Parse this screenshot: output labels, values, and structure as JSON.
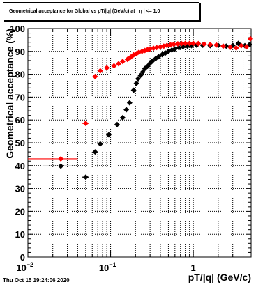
{
  "title": "Geometrical acceptance for Global vs pT/|q| (GeV/c) at | η | <= 1.0",
  "footer": "Thu Oct 15 19:24:06 2020",
  "colors": {
    "series_black": "#000000",
    "series_red": "#ff0000",
    "grid": "#000000"
  },
  "chart_data": {
    "type": "scatter",
    "title": "Geometrical acceptance for Global vs pT/|q| (GeV/c) at | η | <= 1.0",
    "xlabel": "pT/|q| (GeV/c)",
    "ylabel": "Geometrical acceptance (%)",
    "xscale": "log",
    "xlim": [
      0.01,
      5
    ],
    "ylim": [
      0,
      100
    ],
    "yticks": [
      0,
      10,
      20,
      30,
      40,
      50,
      60,
      70,
      80,
      90,
      100
    ],
    "xtick_labels": [
      {
        "value": 0.01,
        "base": "10",
        "exp": "−2"
      },
      {
        "value": 0.1,
        "base": "10",
        "exp": "−1"
      },
      {
        "value": 1,
        "base": "1",
        "exp": ""
      }
    ],
    "grid": true,
    "series": [
      {
        "color": "#000000",
        "points": [
          {
            "x": 0.025,
            "y": 39.8,
            "xerr": [
              0.015,
              0.04
            ]
          },
          {
            "x": 0.05,
            "y": 35.0,
            "xerr": [
              0.045,
              0.055
            ]
          },
          {
            "x": 0.065,
            "y": 46.0
          },
          {
            "x": 0.075,
            "y": 49.5
          },
          {
            "x": 0.095,
            "y": 53.5
          },
          {
            "x": 0.12,
            "y": 58.0
          },
          {
            "x": 0.14,
            "y": 61.0
          },
          {
            "x": 0.155,
            "y": 64.5
          },
          {
            "x": 0.17,
            "y": 67.5
          },
          {
            "x": 0.19,
            "y": 73.0
          },
          {
            "x": 0.205,
            "y": 76.0
          },
          {
            "x": 0.215,
            "y": 78.0
          },
          {
            "x": 0.23,
            "y": 79.5
          },
          {
            "x": 0.245,
            "y": 81.0
          },
          {
            "x": 0.26,
            "y": 82.5
          },
          {
            "x": 0.28,
            "y": 83.5
          },
          {
            "x": 0.3,
            "y": 84.8
          },
          {
            "x": 0.32,
            "y": 85.8
          },
          {
            "x": 0.35,
            "y": 86.8
          },
          {
            "x": 0.38,
            "y": 87.7
          },
          {
            "x": 0.42,
            "y": 88.6
          },
          {
            "x": 0.46,
            "y": 89.3
          },
          {
            "x": 0.5,
            "y": 90.0
          },
          {
            "x": 0.55,
            "y": 90.6
          },
          {
            "x": 0.6,
            "y": 91.1
          },
          {
            "x": 0.67,
            "y": 91.6
          },
          {
            "x": 0.75,
            "y": 92.0
          },
          {
            "x": 0.85,
            "y": 92.3
          },
          {
            "x": 0.95,
            "y": 92.5
          },
          {
            "x": 1.1,
            "y": 92.7
          },
          {
            "x": 1.3,
            "y": 92.7
          },
          {
            "x": 1.6,
            "y": 92.5
          },
          {
            "x": 2.0,
            "y": 92.6
          },
          {
            "x": 2.5,
            "y": 92.3
          },
          {
            "x": 3.0,
            "y": 92.6
          },
          {
            "x": 3.5,
            "y": 93.5
          },
          {
            "x": 4.2,
            "y": 92.5
          },
          {
            "x": 4.8,
            "y": 93.0
          }
        ]
      },
      {
        "color": "#ff0000",
        "points": [
          {
            "x": 0.025,
            "y": 43.0,
            "xerr": [
              0.01,
              0.04
            ]
          },
          {
            "x": 0.05,
            "y": 58.5,
            "xerr": [
              0.045,
              0.055
            ]
          },
          {
            "x": 0.065,
            "y": 79.0
          },
          {
            "x": 0.075,
            "y": 81.5
          },
          {
            "x": 0.09,
            "y": 82.8
          },
          {
            "x": 0.11,
            "y": 83.7
          },
          {
            "x": 0.125,
            "y": 84.6
          },
          {
            "x": 0.14,
            "y": 85.6
          },
          {
            "x": 0.16,
            "y": 86.5
          },
          {
            "x": 0.175,
            "y": 87.5
          },
          {
            "x": 0.19,
            "y": 88.5
          },
          {
            "x": 0.205,
            "y": 89.0
          },
          {
            "x": 0.22,
            "y": 89.6
          },
          {
            "x": 0.24,
            "y": 90.0
          },
          {
            "x": 0.26,
            "y": 90.4
          },
          {
            "x": 0.28,
            "y": 90.8
          },
          {
            "x": 0.3,
            "y": 91.1
          },
          {
            "x": 0.33,
            "y": 91.4
          },
          {
            "x": 0.36,
            "y": 91.7
          },
          {
            "x": 0.4,
            "y": 92.0
          },
          {
            "x": 0.44,
            "y": 92.3
          },
          {
            "x": 0.48,
            "y": 92.6
          },
          {
            "x": 0.53,
            "y": 92.9
          },
          {
            "x": 0.58,
            "y": 93.1
          },
          {
            "x": 0.65,
            "y": 93.3
          },
          {
            "x": 0.72,
            "y": 93.4
          },
          {
            "x": 0.8,
            "y": 93.5
          },
          {
            "x": 0.9,
            "y": 93.5
          },
          {
            "x": 1.0,
            "y": 93.5
          },
          {
            "x": 1.15,
            "y": 93.4
          },
          {
            "x": 1.35,
            "y": 93.2
          },
          {
            "x": 1.6,
            "y": 93.0
          },
          {
            "x": 1.9,
            "y": 92.8
          },
          {
            "x": 2.3,
            "y": 92.3
          },
          {
            "x": 2.8,
            "y": 91.8
          },
          {
            "x": 3.3,
            "y": 91.5
          },
          {
            "x": 3.8,
            "y": 92.5
          },
          {
            "x": 4.4,
            "y": 92.0
          },
          {
            "x": 4.9,
            "y": 95.5
          }
        ]
      }
    ]
  }
}
